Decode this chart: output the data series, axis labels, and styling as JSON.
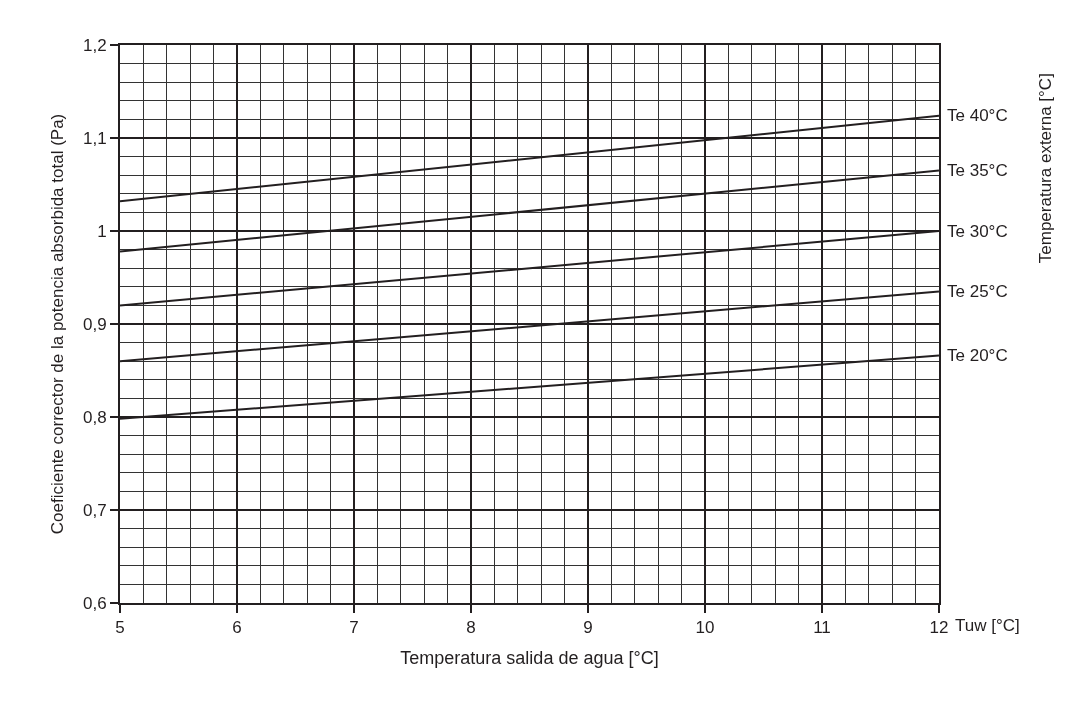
{
  "chart_data": {
    "type": "line",
    "xlabel": "Temperatura salida de agua [°C]",
    "ylabel": "Coeficiente corrector de la potencia absorbida total (Pa)",
    "annotations": [
      "Tuw [°C]",
      "Temperatura externa [°C]"
    ],
    "x": [
      5,
      12
    ],
    "series": [
      {
        "name": "Te 40°C",
        "color": "#231f20",
        "values": [
          1.032,
          1.124
        ]
      },
      {
        "name": "Te 35°C",
        "color": "#231f20",
        "values": [
          0.978,
          1.065
        ]
      },
      {
        "name": "Te 30°C",
        "color": "#231f20",
        "values": [
          0.92,
          1.0
        ]
      },
      {
        "name": "Te 25°C",
        "color": "#231f20",
        "values": [
          0.86,
          0.935
        ]
      },
      {
        "name": "Te 20°C",
        "color": "#231f20",
        "values": [
          0.798,
          0.866
        ]
      }
    ],
    "xlim": [
      5,
      12
    ],
    "xticks": [
      5,
      6,
      7,
      8,
      9,
      10,
      11,
      12
    ],
    "ylim": [
      0.6,
      1.2
    ],
    "yticks": [
      {
        "value": 0.6,
        "label": "0,6"
      },
      {
        "value": 0.7,
        "label": "0,7"
      },
      {
        "value": 0.8,
        "label": "0,8"
      },
      {
        "value": 0.9,
        "label": "0,9"
      },
      1,
      {
        "value": 1.1,
        "label": "1,1"
      },
      {
        "value": 1.2,
        "label": "1,2"
      }
    ],
    "grid": true,
    "legend": false,
    "marker": "none",
    "line_style": "solid"
  }
}
